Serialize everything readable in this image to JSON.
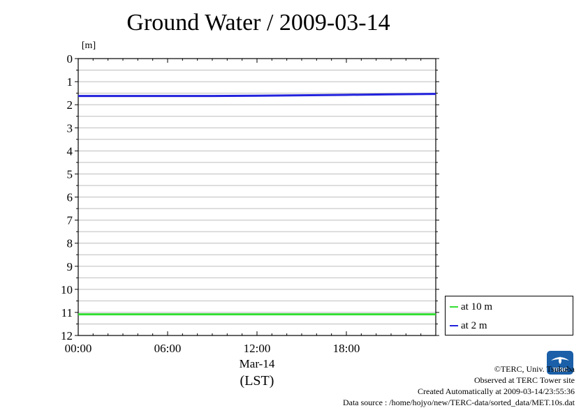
{
  "chart_data": {
    "type": "line",
    "title": "Ground Water / 2009-03-14",
    "ylabel": "[m]",
    "ylim": [
      0,
      12
    ],
    "y_inverted": true,
    "yticks": [
      0,
      1,
      2,
      3,
      4,
      5,
      6,
      7,
      8,
      9,
      10,
      11,
      12
    ],
    "grid": true,
    "xlim": [
      0,
      24
    ],
    "xtick_labels": [
      {
        "x": 0,
        "label": "00:00"
      },
      {
        "x": 6,
        "label": "06:00"
      },
      {
        "x": 12,
        "label": "12:00"
      },
      {
        "x": 18,
        "label": "18:00"
      }
    ],
    "xdate_label": "Mar-14",
    "xunit_label": "(LST)",
    "legend_placement": "lower-right-outside",
    "series": [
      {
        "name": "at 10 m",
        "color": "#33dd33",
        "x": [
          0,
          3,
          6,
          9,
          12,
          15,
          18,
          21,
          24
        ],
        "values": [
          11.08,
          11.08,
          11.08,
          11.08,
          11.08,
          11.08,
          11.08,
          11.08,
          11.08
        ]
      },
      {
        "name": "at 2 m",
        "color": "#2222dd",
        "x": [
          0,
          3,
          6,
          9,
          12,
          15,
          18,
          21,
          24
        ],
        "values": [
          1.62,
          1.62,
          1.62,
          1.62,
          1.61,
          1.59,
          1.57,
          1.55,
          1.53
        ]
      }
    ]
  },
  "credits": {
    "copyright": "©TERC, Univ. Tsukuba",
    "observed": "Observed at TERC Tower site",
    "created": "Created Automatically at 2009-03-14/23:55:36",
    "source": "Data source : /home/hojyo/new/TERC-data/sorted_data/MET.10s.dat"
  },
  "logo": {
    "text": "TERC",
    "color": "#1a5fa8"
  }
}
